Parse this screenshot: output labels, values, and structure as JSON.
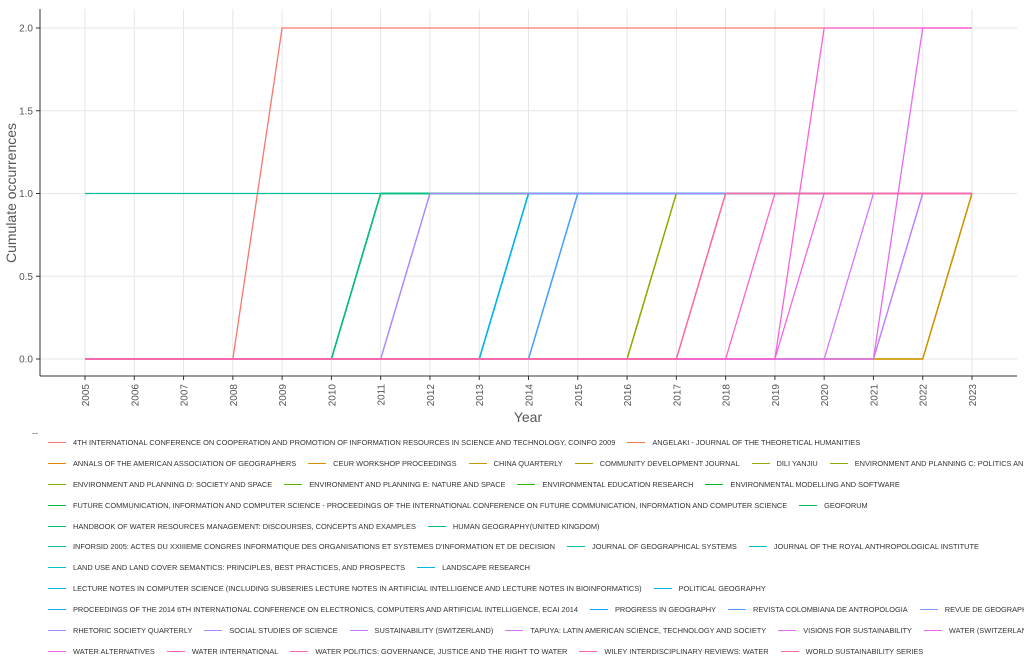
{
  "chart_data": {
    "type": "line",
    "title": "",
    "xlabel": "Year",
    "ylabel": "Cumulate occurrences",
    "legend_title": "--",
    "legend_position": "bottom",
    "grid": true,
    "x": [
      2005,
      2006,
      2007,
      2008,
      2009,
      2010,
      2011,
      2012,
      2013,
      2014,
      2015,
      2016,
      2017,
      2018,
      2019,
      2020,
      2021,
      2022,
      2023
    ],
    "x_tick_labels": [
      "2005",
      "2006",
      "2007",
      "2008",
      "2009",
      "2010",
      "2011",
      "2012",
      "2013",
      "2014",
      "2015",
      "2016",
      "2017",
      "2018",
      "2019",
      "2020",
      "2021",
      "2022",
      "2023"
    ],
    "y_ticks": [
      0.0,
      0.5,
      1.0,
      1.5,
      2.0
    ],
    "y_tick_labels": [
      "0.0",
      "0.5",
      "1.0",
      "1.5",
      "2.0"
    ],
    "xlim": [
      2005,
      2023
    ],
    "ylim": [
      0,
      2
    ],
    "series": [
      {
        "name": "4TH INTERNATIONAL CONFERENCE ON COOPERATION AND PROMOTION OF INFORMATION RESOURCES IN SCIENCE AND TECHNOLOGY, COINFO 2009",
        "color": "#F8766D",
        "values": [
          0,
          0,
          0,
          0,
          2,
          2,
          2,
          2,
          2,
          2,
          2,
          2,
          2,
          2,
          2,
          2,
          2,
          2,
          2
        ]
      },
      {
        "name": "ANGELAKI - JOURNAL OF THE THEORETICAL HUMANITIES",
        "color": "#F07E4F",
        "values": [
          0,
          0,
          0,
          0,
          0,
          0,
          0,
          0,
          0,
          0,
          0,
          0,
          0,
          0,
          0,
          0,
          0,
          0,
          1
        ]
      },
      {
        "name": "ANNALS OF THE AMERICAN ASSOCIATION OF GEOGRAPHERS",
        "color": "#E58700",
        "values": [
          0,
          0,
          0,
          0,
          0,
          0,
          0,
          0,
          0,
          0,
          0,
          0,
          0,
          0,
          0,
          0,
          0,
          0,
          1
        ]
      },
      {
        "name": "CEUR WORKSHOP PROCEEDINGS",
        "color": "#D89000",
        "values": [
          0,
          0,
          0,
          0,
          0,
          0,
          0,
          0,
          0,
          0,
          0,
          0,
          0,
          0,
          0,
          0,
          0,
          0,
          1
        ]
      },
      {
        "name": "CHINA QUARTERLY",
        "color": "#C99800",
        "values": [
          0,
          0,
          0,
          0,
          0,
          0,
          0,
          0,
          0,
          0,
          0,
          0,
          0,
          0,
          0,
          0,
          0,
          0,
          1
        ]
      },
      {
        "name": "COMMUNITY DEVELOPMENT JOURNAL",
        "color": "#B79F00",
        "values": [
          0,
          0,
          0,
          0,
          0,
          0,
          0,
          0,
          0,
          0,
          0,
          0,
          1,
          1,
          1,
          1,
          1,
          1,
          1
        ]
      },
      {
        "name": "DILI YANJIU",
        "color": "#A3A500",
        "values": [
          0,
          0,
          0,
          0,
          0,
          0,
          0,
          0,
          0,
          0,
          0,
          0,
          1,
          1,
          1,
          1,
          1,
          1,
          1
        ]
      },
      {
        "name": "ENVIRONMENT AND PLANNING C: POLITICS AND SPACE",
        "color": "#8EAB00",
        "values": [
          0,
          0,
          0,
          0,
          0,
          0,
          0,
          0,
          0,
          0,
          0,
          0,
          1,
          1,
          1,
          1,
          1,
          1,
          1
        ]
      },
      {
        "name": "ENVIRONMENT AND PLANNING D: SOCIETY AND SPACE",
        "color": "#77B000",
        "values": [
          0,
          0,
          0,
          0,
          0,
          0,
          1,
          1,
          1,
          1,
          1,
          1,
          1,
          1,
          1,
          1,
          1,
          1,
          1
        ]
      },
      {
        "name": "ENVIRONMENT AND PLANNING E: NATURE AND SPACE",
        "color": "#5BB300",
        "values": [
          0,
          0,
          0,
          0,
          0,
          0,
          1,
          1,
          1,
          1,
          1,
          1,
          1,
          1,
          1,
          1,
          1,
          1,
          1
        ]
      },
      {
        "name": "ENVIRONMENTAL EDUCATION RESEARCH",
        "color": "#2CB600",
        "values": [
          0,
          0,
          0,
          0,
          0,
          0,
          1,
          1,
          1,
          1,
          1,
          1,
          1,
          1,
          1,
          1,
          1,
          1,
          1
        ]
      },
      {
        "name": "ENVIRONMENTAL MODELLING AND SOFTWARE",
        "color": "#00B81F",
        "values": [
          0,
          0,
          0,
          0,
          0,
          0,
          1,
          1,
          1,
          1,
          1,
          1,
          1,
          1,
          1,
          1,
          1,
          1,
          1
        ]
      },
      {
        "name": "FUTURE COMMUNICATION, INFORMATION AND COMPUTER SCIENCE - PROCEEDINGS OF THE INTERNATIONAL CONFERENCE ON FUTURE COMMUNICATION, INFORMATION AND COMPUTER SCIENCE",
        "color": "#00BA42",
        "values": [
          0,
          0,
          0,
          0,
          0,
          0,
          1,
          1,
          1,
          1,
          1,
          1,
          1,
          1,
          1,
          1,
          1,
          1,
          1
        ]
      },
      {
        "name": "GEOFORUM",
        "color": "#00BC5B",
        "values": [
          0,
          0,
          0,
          0,
          0,
          0,
          1,
          1,
          1,
          1,
          1,
          1,
          1,
          1,
          1,
          1,
          1,
          1,
          1
        ]
      },
      {
        "name": "HANDBOOK OF WATER RESOURCES MANAGEMENT: DISCOURSES, CONCEPTS AND EXAMPLES",
        "color": "#00BE70",
        "values": [
          0,
          0,
          0,
          0,
          0,
          0,
          1,
          1,
          1,
          1,
          1,
          1,
          1,
          1,
          1,
          1,
          1,
          1,
          1
        ]
      },
      {
        "name": "HUMAN GEOGRAPHY(UNITED KINGDOM)",
        "color": "#00BF84",
        "values": [
          0,
          0,
          0,
          0,
          0,
          0,
          1,
          1,
          1,
          1,
          1,
          1,
          1,
          1,
          1,
          1,
          1,
          1,
          1
        ]
      },
      {
        "name": "INFORSID 2005: ACTES DU XXIIIEME CONGRES INFORMATIQUE DES ORGANISATIONS ET SYSTEMES D'INFORMATION ET DE DECISION",
        "color": "#00C097",
        "values": [
          1,
          1,
          1,
          1,
          1,
          1,
          1,
          1,
          1,
          1,
          1,
          1,
          1,
          1,
          1,
          1,
          1,
          1,
          1
        ]
      },
      {
        "name": "JOURNAL OF GEOGRAPHICAL SYSTEMS",
        "color": "#00C0A9",
        "values": [
          0,
          0,
          0,
          0,
          0,
          0,
          0,
          0,
          0,
          1,
          1,
          1,
          1,
          1,
          1,
          1,
          1,
          1,
          1
        ]
      },
      {
        "name": "JOURNAL OF THE ROYAL ANTHROPOLOGICAL INSTITUTE",
        "color": "#00C0BA",
        "values": [
          0,
          0,
          0,
          0,
          0,
          0,
          0,
          0,
          0,
          1,
          1,
          1,
          1,
          1,
          1,
          1,
          1,
          1,
          1
        ]
      },
      {
        "name": "LAND USE AND LAND COVER SEMANTICS: PRINCIPLES, BEST PRACTICES, AND PROSPECTS",
        "color": "#00BECA",
        "values": [
          0,
          0,
          0,
          0,
          0,
          0,
          0,
          0,
          0,
          1,
          1,
          1,
          1,
          1,
          1,
          1,
          1,
          1,
          1
        ]
      },
      {
        "name": "LANDSCAPE RESEARCH",
        "color": "#00BCD8",
        "values": [
          0,
          0,
          0,
          0,
          0,
          0,
          0,
          0,
          0,
          1,
          1,
          1,
          1,
          1,
          1,
          1,
          1,
          1,
          1
        ]
      },
      {
        "name": "LECTURE NOTES IN COMPUTER SCIENCE (INCLUDING SUBSERIES LECTURE NOTES IN ARTIFICIAL INTELLIGENCE AND LECTURE NOTES IN BIOINFORMATICS)",
        "color": "#00B8E5",
        "values": [
          0,
          0,
          0,
          0,
          0,
          0,
          0,
          0,
          0,
          1,
          1,
          1,
          1,
          1,
          1,
          1,
          1,
          1,
          1
        ]
      },
      {
        "name": "POLITICAL GEOGRAPHY",
        "color": "#00B4F0",
        "values": [
          0,
          0,
          0,
          0,
          0,
          0,
          0,
          0,
          0,
          1,
          1,
          1,
          1,
          1,
          1,
          1,
          1,
          1,
          1
        ]
      },
      {
        "name": "PROCEEDINGS OF THE 2014 6TH INTERNATIONAL CONFERENCE ON ELECTRONICS, COMPUTERS AND ARTIFICIAL INTELLIGENCE, ECAI 2014",
        "color": "#00AEFA",
        "values": [
          0,
          0,
          0,
          0,
          0,
          0,
          0,
          0,
          0,
          0,
          1,
          1,
          1,
          1,
          1,
          1,
          1,
          1,
          1
        ]
      },
      {
        "name": "PROGRESS IN GEOGRAPHY",
        "color": "#00A7FF",
        "values": [
          0,
          0,
          0,
          0,
          0,
          0,
          0,
          0,
          0,
          0,
          1,
          1,
          1,
          1,
          1,
          1,
          1,
          1,
          1
        ]
      },
      {
        "name": "REVISTA COLOMBIANA DE ANTROPOLOGIA",
        "color": "#529EFF",
        "values": [
          0,
          0,
          0,
          0,
          0,
          0,
          0,
          0,
          0,
          0,
          1,
          1,
          1,
          1,
          1,
          1,
          1,
          1,
          1
        ]
      },
      {
        "name": "REVUE DE GEOGRAPHIE ALPINE",
        "color": "#7997FF",
        "values": [
          0,
          0,
          0,
          0,
          0,
          0,
          0,
          0,
          0,
          0,
          0,
          0,
          0,
          0,
          0,
          0,
          0,
          1,
          1
        ]
      },
      {
        "name": "RHETORIC SOCIETY QUARTERLY",
        "color": "#978DFF",
        "values": [
          0,
          0,
          0,
          0,
          0,
          0,
          0,
          1,
          1,
          1,
          1,
          1,
          1,
          1,
          1,
          1,
          1,
          1,
          1
        ]
      },
      {
        "name": "SOCIAL STUDIES OF SCIENCE",
        "color": "#AE87FF",
        "values": [
          0,
          0,
          0,
          0,
          0,
          0,
          0,
          1,
          1,
          1,
          1,
          1,
          1,
          1,
          1,
          1,
          1,
          1,
          1
        ]
      },
      {
        "name": "SUSTAINABILITY (SWITZERLAND)",
        "color": "#C77CFF",
        "values": [
          0,
          0,
          0,
          0,
          0,
          0,
          0,
          0,
          0,
          0,
          0,
          0,
          0,
          0,
          0,
          0,
          0,
          1,
          1
        ]
      },
      {
        "name": "TAPUYA: LATIN AMERICAN SCIENCE, TECHNOLOGY AND SOCIETY",
        "color": "#D874FD",
        "values": [
          0,
          0,
          0,
          0,
          0,
          0,
          0,
          0,
          0,
          0,
          0,
          0,
          0,
          0,
          0,
          0,
          1,
          1,
          1
        ]
      },
      {
        "name": "VISIONS FOR SUSTAINABILITY",
        "color": "#E76BF3",
        "values": [
          0,
          0,
          0,
          0,
          0,
          0,
          0,
          0,
          0,
          0,
          0,
          0,
          0,
          0,
          0,
          0,
          0,
          2,
          2
        ]
      },
      {
        "name": "WATER (SWITZERLAND)",
        "color": "#F265E7",
        "values": [
          0,
          0,
          0,
          0,
          0,
          0,
          0,
          0,
          0,
          0,
          0,
          0,
          0,
          0,
          0,
          1,
          1,
          1,
          1
        ]
      },
      {
        "name": "WATER ALTERNATIVES",
        "color": "#FA62DB",
        "values": [
          0,
          0,
          0,
          0,
          0,
          0,
          0,
          0,
          0,
          0,
          0,
          0,
          0,
          0,
          0,
          2,
          2,
          2,
          2
        ]
      },
      {
        "name": "WATER INTERNATIONAL",
        "color": "#FF61CC",
        "values": [
          0,
          0,
          0,
          0,
          0,
          0,
          0,
          0,
          0,
          0,
          0,
          0,
          0,
          0,
          1,
          1,
          1,
          1,
          1
        ]
      },
      {
        "name": "WATER POLITICS: GOVERNANCE, JUSTICE AND THE RIGHT TO WATER",
        "color": "#FF62BC",
        "values": [
          0,
          0,
          0,
          0,
          0,
          0,
          0,
          0,
          0,
          0,
          0,
          0,
          0,
          1,
          1,
          1,
          1,
          1,
          1
        ]
      },
      {
        "name": "WILEY INTERDISCIPLINARY REVIEWS: WATER",
        "color": "#FF65AC",
        "values": [
          0,
          0,
          0,
          0,
          0,
          0,
          0,
          0,
          0,
          0,
          0,
          0,
          0,
          1,
          1,
          1,
          1,
          1,
          1
        ]
      },
      {
        "name": "WORLD SUSTAINABILITY SERIES",
        "color": "#FF6A9A",
        "values": [
          0,
          0,
          0,
          0,
          0,
          0,
          0,
          0,
          0,
          0,
          0,
          0,
          0,
          1,
          1,
          1,
          1,
          1,
          1
        ]
      }
    ]
  },
  "legend_rows": [
    [
      0,
      1
    ],
    [
      2,
      3,
      4,
      5,
      6,
      7
    ],
    [
      8,
      9,
      10,
      11
    ],
    [
      12,
      13
    ],
    [
      14,
      15
    ],
    [
      16,
      17,
      18
    ],
    [
      19,
      20
    ],
    [
      21,
      22
    ],
    [
      23,
      24,
      25,
      26
    ],
    [
      27,
      28,
      29,
      30,
      31,
      32
    ],
    [
      33,
      34,
      35,
      36,
      37
    ]
  ]
}
